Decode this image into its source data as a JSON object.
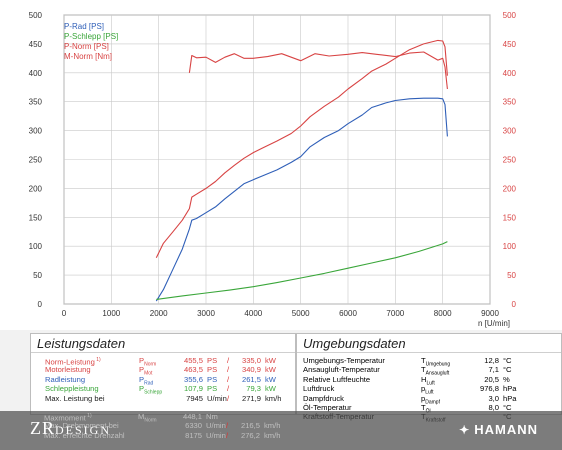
{
  "chart_data": {
    "type": "line",
    "x_unit": "n [U/min]",
    "xlim": [
      0,
      9000
    ],
    "x_ticks": [
      "0",
      "1000",
      "2000",
      "3000",
      "4000",
      "5000",
      "6000",
      "7000",
      "8000",
      "9000"
    ],
    "ylim_left": [
      0,
      500
    ],
    "y_ticks_left": [
      "0",
      "50",
      "100",
      "150",
      "200",
      "250",
      "300",
      "350",
      "400",
      "450",
      "500"
    ],
    "ylim_right": [
      0,
      500
    ],
    "y_ticks_right": [
      "0",
      "50",
      "100",
      "150",
      "200",
      "250",
      "300",
      "350",
      "400",
      "450",
      "500"
    ],
    "grid": true,
    "legend_position": "top-left",
    "series": [
      {
        "name": "P-Rad [PS]",
        "color": "#2f5fb8",
        "axis": "left",
        "x": [
          1950,
          2100,
          2300,
          2500,
          2650,
          2700,
          2800,
          3000,
          3200,
          3400,
          3600,
          3800,
          4000,
          4200,
          4500,
          4800,
          5000,
          5200,
          5500,
          5800,
          6000,
          6300,
          6500,
          6800,
          7000,
          7300,
          7600,
          7900,
          8000,
          8050,
          8100
        ],
        "y": [
          5,
          25,
          60,
          95,
          130,
          145,
          148,
          158,
          168,
          182,
          195,
          208,
          215,
          222,
          232,
          245,
          255,
          272,
          288,
          300,
          312,
          327,
          340,
          348,
          352,
          355,
          356,
          356,
          355,
          345,
          290
        ]
      },
      {
        "name": "P-Schlepp [PS]",
        "color": "#3aa63a",
        "axis": "left",
        "x": [
          1950,
          2500,
          3000,
          3500,
          4000,
          4500,
          5000,
          5500,
          6000,
          6500,
          7000,
          7500,
          8000,
          8100
        ],
        "y": [
          8,
          14,
          19,
          24,
          30,
          37,
          45,
          53,
          62,
          71,
          80,
          91,
          104,
          108
        ]
      },
      {
        "name": "P-Norm [PS]",
        "color": "#d84444",
        "axis": "left",
        "x": [
          1950,
          2100,
          2300,
          2500,
          2650,
          2700,
          2800,
          3000,
          3200,
          3400,
          3600,
          3800,
          4000,
          4200,
          4500,
          4800,
          5000,
          5200,
          5500,
          5800,
          6000,
          6300,
          6500,
          6800,
          7000,
          7300,
          7600,
          7900,
          8000,
          8050,
          8100
        ],
        "y": [
          80,
          105,
          125,
          145,
          165,
          185,
          190,
          200,
          212,
          227,
          240,
          252,
          262,
          270,
          282,
          295,
          308,
          324,
          342,
          358,
          372,
          390,
          403,
          415,
          425,
          440,
          450,
          456,
          455,
          445,
          395
        ]
      },
      {
        "name": "M-Norm [Nm]",
        "color": "#d84444",
        "axis": "right",
        "x": [
          2650,
          2700,
          2800,
          3000,
          3200,
          3400,
          3600,
          3800,
          4000,
          4300,
          4600,
          5000,
          5300,
          5600,
          6000,
          6300,
          6600,
          7000,
          7300,
          7600,
          7900,
          8000,
          8050,
          8100
        ],
        "y": [
          400,
          430,
          426,
          427,
          418,
          427,
          433,
          425,
          425,
          428,
          433,
          421,
          433,
          429,
          432,
          435,
          432,
          428,
          434,
          436,
          422,
          425,
          410,
          372
        ]
      }
    ]
  },
  "legend": {
    "items": [
      {
        "label": "P-Rad [PS]",
        "color": "#2f5fb8"
      },
      {
        "label": "P-Schlepp [PS]",
        "color": "#3aa63a"
      },
      {
        "label": "P-Norm [PS]",
        "color": "#d84444"
      },
      {
        "label": "M-Norm [Nm]",
        "color": "#d84444"
      }
    ]
  },
  "leistungsdaten": {
    "title": "Leistungsdaten",
    "rows": [
      {
        "label": "Norm-Leistung",
        "suffix": "1)",
        "sym": "P",
        "sub": "Norm",
        "v1": "455,5",
        "u1": "PS",
        "slash": "/",
        "v2": "335,0",
        "u2": "kW",
        "color": "#d84444"
      },
      {
        "label": "Motorleistung",
        "suffix": "",
        "sym": "P",
        "sub": "Mot",
        "v1": "463,5",
        "u1": "PS",
        "slash": "/",
        "v2": "340,9",
        "u2": "kW",
        "color": "#d84444"
      },
      {
        "label": "Radleistung",
        "suffix": "",
        "sym": "P",
        "sub": "Rad",
        "v1": "355,6",
        "u1": "PS",
        "slash": "/",
        "v2": "261,5",
        "u2": "kW",
        "color": "#2f5fb8"
      },
      {
        "label": "Schleppleistung",
        "suffix": "",
        "sym": "P",
        "sub": "Schlepp",
        "v1": "107,9",
        "u1": "PS",
        "slash": "/",
        "v2": "79,3",
        "u2": "kW",
        "color": "#3aa63a"
      },
      {
        "label": "Max. Leistung bei",
        "suffix": "",
        "sym": "",
        "sub": "",
        "v1": "7945",
        "u1": "U/min",
        "slash": "/",
        "v2": "271,9",
        "u2": "km/h",
        "color": "#222222"
      }
    ],
    "hidden_rows": [
      {
        "label": "Maxmoment",
        "suffix": "1)",
        "sym": "M",
        "sub": "Norm",
        "v1": "448,1",
        "u1": "Nm",
        "slash": "",
        "v2": "",
        "u2": ""
      },
      {
        "label": "Max. Drehmoment bei",
        "suffix": "",
        "sym": "",
        "sub": "",
        "v1": "6330",
        "u1": "U/min",
        "slash": "/",
        "v2": "216,5",
        "u2": "km/h"
      },
      {
        "label": "Max. erreichte Drehzahl",
        "suffix": "",
        "sym": "",
        "sub": "",
        "v1": "8175",
        "u1": "U/min",
        "slash": "/",
        "v2": "276,2",
        "u2": "km/h"
      }
    ]
  },
  "umgebungsdaten": {
    "title": "Umgebungsdaten",
    "rows": [
      {
        "label": "Umgebungs-Temperatur",
        "sym": "T",
        "sub": "Umgebung",
        "val": "12,8",
        "unit": "°C"
      },
      {
        "label": "Ansaugluft-Temperatur",
        "sym": "T",
        "sub": "Ansaugluft",
        "val": "7,1",
        "unit": "°C"
      },
      {
        "label": "Relative Luftfeuchte",
        "sym": "H",
        "sub": "Luft",
        "val": "20,5",
        "unit": "%"
      },
      {
        "label": "Luftdruck",
        "sym": "p",
        "sub": "Luft",
        "val": "976,8",
        "unit": "hPa"
      },
      {
        "label": "Dampfdruck",
        "sym": "p",
        "sub": "Dampf",
        "val": "3,0",
        "unit": "hPa"
      },
      {
        "label": "Öl-Temperatur",
        "sym": "T",
        "sub": "Öl",
        "val": "8,0",
        "unit": "°C"
      },
      {
        "label": "Kraftstoff-Temperatur",
        "sym": "T",
        "sub": "Kraftstoff",
        "val": "",
        "unit": "°C"
      }
    ]
  },
  "brand": {
    "left_main": "ZR",
    "left_sub": "DESIGN",
    "right_wing": "✦",
    "right": "HAMANN"
  }
}
